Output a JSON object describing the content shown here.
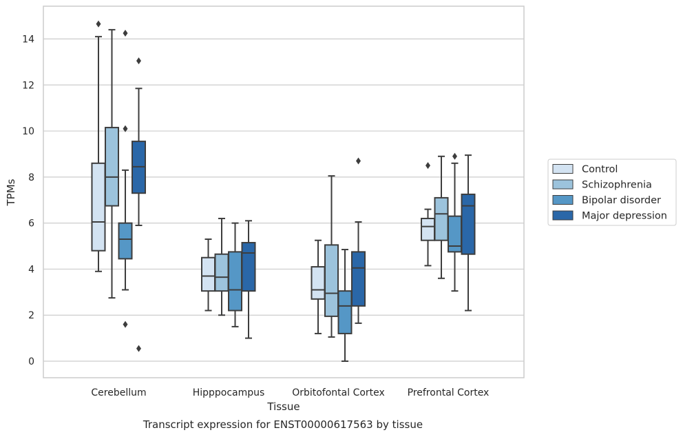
{
  "chart_data": {
    "type": "box",
    "caption": "Transcript expression for ENST00000617563 by tissue",
    "xlabel": "Tissue",
    "ylabel": "TPMs",
    "ylim": [
      -0.7,
      15.4
    ],
    "yticks": [
      0,
      2,
      4,
      6,
      8,
      10,
      12,
      14
    ],
    "grid": "horizontal",
    "legend_placement": "right",
    "categories": [
      "Cerebellum",
      "Hipppocampus",
      "Orbitofontal Cortex",
      "Prefrontal Cortex"
    ],
    "series": [
      {
        "name": "Control",
        "color": "#d3e3f2",
        "boxes": [
          {
            "whislo": 3.9,
            "q1": 4.8,
            "med": 6.05,
            "q3": 8.6,
            "whishi": 14.1,
            "fliers": [
              14.65
            ]
          },
          {
            "whislo": 2.2,
            "q1": 3.05,
            "med": 3.7,
            "q3": 4.5,
            "whishi": 5.3,
            "fliers": []
          },
          {
            "whislo": 1.2,
            "q1": 2.7,
            "med": 3.1,
            "q3": 4.1,
            "whishi": 5.25,
            "fliers": []
          },
          {
            "whislo": 4.15,
            "q1": 5.25,
            "med": 5.85,
            "q3": 6.2,
            "whishi": 6.6,
            "fliers": [
              8.5
            ]
          }
        ]
      },
      {
        "name": "Schizophrenia",
        "color": "#9cc3dc",
        "boxes": [
          {
            "whislo": 2.75,
            "q1": 6.75,
            "med": 8.0,
            "q3": 10.15,
            "whishi": 14.4,
            "fliers": []
          },
          {
            "whislo": 2.0,
            "q1": 3.05,
            "med": 3.65,
            "q3": 4.65,
            "whishi": 6.2,
            "fliers": []
          },
          {
            "whislo": 1.05,
            "q1": 1.95,
            "med": 2.95,
            "q3": 5.05,
            "whishi": 8.05,
            "fliers": []
          },
          {
            "whislo": 3.6,
            "q1": 5.25,
            "med": 6.4,
            "q3": 7.1,
            "whishi": 8.9,
            "fliers": []
          }
        ]
      },
      {
        "name": "Bipolar disorder",
        "color": "#5597c6",
        "boxes": [
          {
            "whislo": 3.1,
            "q1": 4.45,
            "med": 5.3,
            "q3": 6.0,
            "whishi": 8.3,
            "fliers": [
              14.25,
              10.1,
              1.6
            ]
          },
          {
            "whislo": 1.5,
            "q1": 2.2,
            "med": 3.1,
            "q3": 4.75,
            "whishi": 6.0,
            "fliers": []
          },
          {
            "whislo": 0.0,
            "q1": 1.2,
            "med": 2.4,
            "q3": 3.05,
            "whishi": 4.85,
            "fliers": []
          },
          {
            "whislo": 3.05,
            "q1": 4.75,
            "med": 5.0,
            "q3": 6.3,
            "whishi": 8.6,
            "fliers": [
              8.9
            ]
          }
        ]
      },
      {
        "name": "Major depression",
        "color": "#2a67a8",
        "boxes": [
          {
            "whislo": 5.9,
            "q1": 7.3,
            "med": 8.45,
            "q3": 9.55,
            "whishi": 11.85,
            "fliers": [
              13.05,
              0.55
            ]
          },
          {
            "whislo": 1.0,
            "q1": 3.05,
            "med": 4.7,
            "q3": 5.15,
            "whishi": 6.1,
            "fliers": []
          },
          {
            "whislo": 1.65,
            "q1": 2.4,
            "med": 4.05,
            "q3": 4.75,
            "whishi": 6.05,
            "fliers": [
              8.7
            ]
          },
          {
            "whislo": 2.2,
            "q1": 4.65,
            "med": 6.75,
            "q3": 7.25,
            "whishi": 8.95,
            "fliers": []
          }
        ]
      }
    ]
  }
}
